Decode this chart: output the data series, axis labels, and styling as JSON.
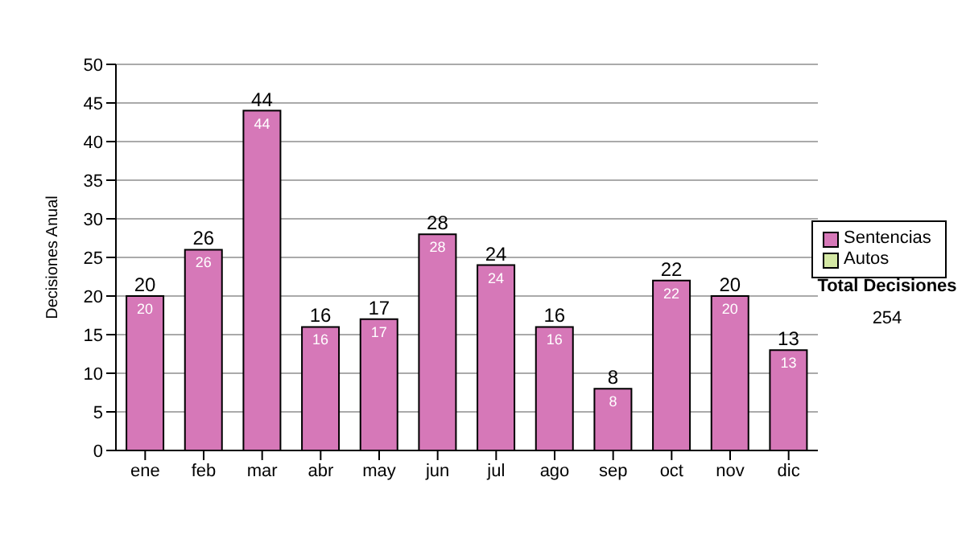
{
  "chart_data": {
    "type": "bar",
    "ylabel": "Decisiones Anual",
    "categories": [
      "ene",
      "feb",
      "mar",
      "abr",
      "may",
      "jun",
      "jul",
      "ago",
      "sep",
      "oct",
      "nov",
      "dic"
    ],
    "series": [
      {
        "name": "Sentencias",
        "color": "#d678b8",
        "values": [
          20,
          26,
          44,
          16,
          17,
          28,
          24,
          16,
          8,
          22,
          20,
          13
        ],
        "value_labels": [
          "20",
          "26",
          "44",
          "16",
          "17",
          "28",
          "24",
          "16",
          "8",
          "22",
          "20",
          "13"
        ]
      },
      {
        "name": "Autos",
        "color": "#d4e8a4",
        "values": [
          0,
          0,
          0,
          0,
          0,
          0,
          0,
          0,
          0,
          0,
          0,
          0
        ]
      }
    ],
    "stacked": true,
    "totals": [
      "20",
      "26",
      "44",
      "16",
      "17",
      "28",
      "24",
      "16",
      "8",
      "22",
      "20",
      "13"
    ],
    "ylim": [
      0,
      50
    ],
    "yticks": [
      0,
      5,
      10,
      15,
      20,
      25,
      30,
      35,
      40,
      45,
      50
    ],
    "grid": "y",
    "legend": "right",
    "annotations": [
      "Total Decisiones",
      "254"
    ]
  }
}
